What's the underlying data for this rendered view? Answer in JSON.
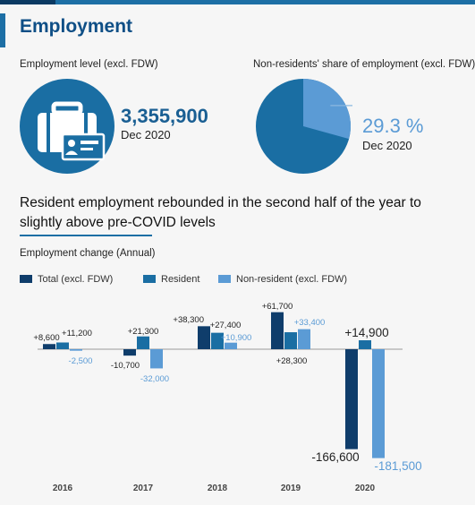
{
  "header": {
    "title": "Employment"
  },
  "employment_level": {
    "label": "Employment level (excl. FDW)",
    "value": "3,355,900",
    "date": "Dec 2020",
    "icon": "briefcase-icon"
  },
  "nonresident_share": {
    "label": "Non-residents' share of employment (excl. FDW)",
    "value": "29.3 %",
    "date": "Dec 2020",
    "share": 0.293
  },
  "headline": "Resident employment rebounded in the second half of the year to slightly above pre-COVID levels",
  "colors": {
    "total": "#0f3d6b",
    "resident": "#1a6ea3",
    "nonresident": "#5b9bd5",
    "brand": "#1d6fa5"
  },
  "chart_data": {
    "type": "bar",
    "title": "Employment change (Annual)",
    "categories": [
      "2016",
      "2017",
      "2018",
      "2019",
      "2020"
    ],
    "series": [
      {
        "name": "Total (excl. FDW)",
        "values": [
          8600,
          -10700,
          38300,
          61700,
          -166600
        ],
        "labels": [
          "+8,600",
          "-10,700",
          "+38,300",
          "+61,700",
          "-166,600"
        ]
      },
      {
        "name": "Resident",
        "values": [
          11200,
          21300,
          27400,
          28300,
          14900
        ],
        "labels": [
          "+11,200",
          "+21,300",
          "+27,400",
          "+28,300",
          "+14,900"
        ]
      },
      {
        "name": "Non-resident (excl. FDW)",
        "values": [
          -2500,
          -32000,
          10900,
          33400,
          -181500
        ],
        "labels": [
          "-2,500",
          "-32,000",
          "+10,900",
          "+33,400",
          "-181,500"
        ]
      }
    ],
    "legend": "top"
  }
}
